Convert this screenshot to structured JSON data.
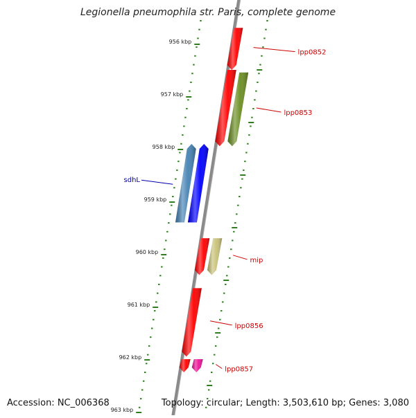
{
  "title": "Legionella pneumophila str. Paris, complete genome",
  "accession_text": "Accession: NC_006368",
  "topology_text": "Topology: circular; Length: 3,503,610 bp; Genes: 3,080",
  "colors": {
    "backbone": "#8a8a8a",
    "tick": "#2e7d1e",
    "label_red": "#cc0000",
    "label_blue": "#0000aa"
  },
  "kbp_labels": [
    {
      "kbp": 956,
      "label": "956 kbp"
    },
    {
      "kbp": 957,
      "label": "957 kbp"
    },
    {
      "kbp": 958,
      "label": "958 kbp"
    },
    {
      "kbp": 959,
      "label": "959 kbp"
    },
    {
      "kbp": 960,
      "label": "960 kbp"
    },
    {
      "kbp": 961,
      "label": "961 kbp"
    },
    {
      "kbp": 962,
      "label": "962 kbp"
    },
    {
      "kbp": 963,
      "label": "963 kbp"
    }
  ],
  "genes": [
    {
      "name": "lpp0852",
      "label": "lpp0852",
      "track": "inner-right",
      "start_kbp": 955.7,
      "end_kbp": 956.5,
      "color": "#ff0000",
      "label_color": "#cc0000",
      "label_side": "right"
    },
    {
      "name": "lpp0852-b",
      "label": "",
      "track": "inner-right",
      "start_kbp": 956.5,
      "end_kbp": 957.95,
      "color": "#ff0000",
      "label_color": "#cc0000",
      "label_side": "right"
    },
    {
      "name": "lpp0853",
      "label": "lpp0853",
      "track": "outer-right",
      "start_kbp": 956.55,
      "end_kbp": 957.95,
      "color": "#6b8e23",
      "label_color": "#cc0000",
      "label_side": "right"
    },
    {
      "name": "sdhL-a",
      "label": "",
      "track": "outer-left",
      "start_kbp": 958.0,
      "end_kbp": 959.4,
      "color": "#4682b4",
      "label_color": "#0000aa",
      "label_side": "left"
    },
    {
      "name": "sdhL",
      "label": "sdhL",
      "track": "inner-left",
      "start_kbp": 958.0,
      "end_kbp": 959.4,
      "color": "#0000ff",
      "label_color": "#0000aa",
      "label_side": "left"
    },
    {
      "name": "mip-a",
      "label": "",
      "track": "inner-right",
      "start_kbp": 959.7,
      "end_kbp": 960.4,
      "color": "#ff0000",
      "label_color": "#cc0000",
      "label_side": "right"
    },
    {
      "name": "mip",
      "label": "mip",
      "track": "outer-right",
      "start_kbp": 959.7,
      "end_kbp": 960.4,
      "color": "#c9c27a",
      "label_color": "#cc0000",
      "label_side": "right"
    },
    {
      "name": "lpp0856",
      "label": "lpp0856",
      "track": "inner-right",
      "start_kbp": 960.65,
      "end_kbp": 961.95,
      "color": "#ff0000",
      "label_color": "#cc0000",
      "label_side": "right"
    },
    {
      "name": "lpp0857-a",
      "label": "",
      "track": "inner-right",
      "start_kbp": 962.0,
      "end_kbp": 962.25,
      "color": "#ff0000",
      "label_color": "#cc0000",
      "label_side": "right"
    },
    {
      "name": "lpp0857",
      "label": "lpp0857",
      "track": "outer-right",
      "start_kbp": 962.0,
      "end_kbp": 962.25,
      "color": "#ee1199",
      "label_color": "#cc0000",
      "label_side": "right"
    }
  ]
}
